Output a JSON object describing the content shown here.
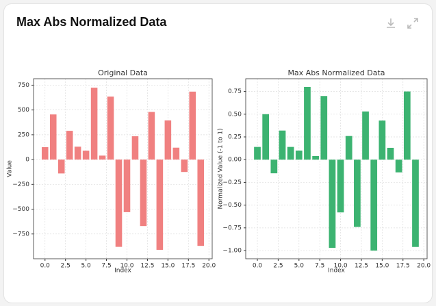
{
  "header": {
    "title": "Max Abs Normalized Data"
  },
  "chart_data": [
    {
      "type": "bar",
      "title": "Original Data",
      "xlabel": "Index",
      "ylabel": "Value",
      "x": [
        0,
        1,
        2,
        3,
        4,
        5,
        6,
        7,
        8,
        9,
        10,
        11,
        12,
        13,
        14,
        15,
        16,
        17,
        18,
        19
      ],
      "values": [
        125,
        455,
        -140,
        290,
        130,
        90,
        725,
        40,
        635,
        -880,
        -530,
        235,
        -670,
        480,
        -910,
        395,
        120,
        -125,
        685,
        -870
      ],
      "color": "#f08080",
      "grid": true,
      "xlim": [
        -1.4,
        20.4
      ],
      "ylim": [
        -1000,
        815
      ],
      "xticks": [
        {
          "value": 0,
          "label": "0.0"
        },
        {
          "value": 2.5,
          "label": "2.5"
        },
        {
          "value": 5,
          "label": "5.0"
        },
        {
          "value": 7.5,
          "label": "7.5"
        },
        {
          "value": 10,
          "label": "10.0"
        },
        {
          "value": 12.5,
          "label": "12.5"
        },
        {
          "value": 15,
          "label": "15.0"
        },
        {
          "value": 17.5,
          "label": "17.5"
        },
        {
          "value": 20,
          "label": "20.0"
        }
      ],
      "yticks": [
        {
          "value": -750,
          "label": "−750"
        },
        {
          "value": -500,
          "label": "−500"
        },
        {
          "value": -250,
          "label": "−250"
        },
        0,
        250,
        500,
        750
      ]
    },
    {
      "type": "bar",
      "title": "Max Abs Normalized Data",
      "xlabel": "Index",
      "ylabel": "Normalized Value (-1 to 1)",
      "x": [
        0,
        1,
        2,
        3,
        4,
        5,
        6,
        7,
        8,
        9,
        10,
        11,
        12,
        13,
        14,
        15,
        16,
        17,
        18,
        19
      ],
      "values": [
        0.14,
        0.5,
        -0.15,
        0.32,
        0.14,
        0.1,
        0.8,
        0.04,
        0.7,
        -0.97,
        -0.58,
        0.26,
        -0.74,
        0.53,
        -1.0,
        0.43,
        0.13,
        -0.14,
        0.75,
        -0.96
      ],
      "color": "#3cb371",
      "grid": true,
      "xlim": [
        -1.4,
        20.4
      ],
      "ylim": [
        -1.09,
        0.89
      ],
      "xticks": [
        {
          "value": 0,
          "label": "0.0"
        },
        {
          "value": 2.5,
          "label": "2.5"
        },
        {
          "value": 5,
          "label": "5.0"
        },
        {
          "value": 7.5,
          "label": "7.5"
        },
        {
          "value": 10,
          "label": "10.0"
        },
        {
          "value": 12.5,
          "label": "12.5"
        },
        {
          "value": 15,
          "label": "15.0"
        },
        {
          "value": 17.5,
          "label": "17.5"
        },
        {
          "value": 20,
          "label": "20.0"
        }
      ],
      "yticks": [
        {
          "value": -1,
          "label": "−1.00"
        },
        {
          "value": -0.75,
          "label": "−0.75"
        },
        {
          "value": -0.5,
          "label": "−0.50"
        },
        {
          "value": -0.25,
          "label": "−0.25"
        },
        {
          "value": 0,
          "label": "0.00"
        },
        {
          "value": 0.25,
          "label": "0.25"
        },
        {
          "value": 0.5,
          "label": "0.50"
        },
        {
          "value": 0.75,
          "label": "0.75"
        }
      ]
    }
  ]
}
